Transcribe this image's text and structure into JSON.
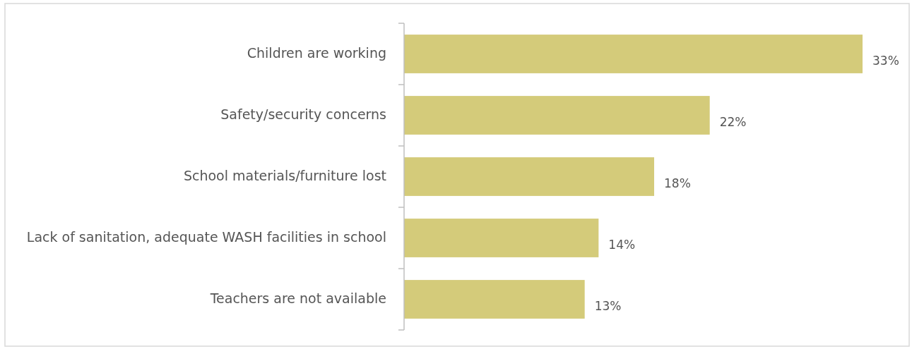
{
  "chart_data": {
    "type": "bar",
    "orientation": "horizontal",
    "categories": [
      "Children are working",
      "Safety/security concerns",
      "School materials/furniture lost",
      "Lack of sanitation, adequate WASH facilities in school",
      "Teachers are not available"
    ],
    "values": [
      33,
      22,
      18,
      14,
      13
    ],
    "value_labels": [
      "33%",
      "22%",
      "18%",
      "14%",
      "13%"
    ],
    "color": "#d4cb7a"
  }
}
